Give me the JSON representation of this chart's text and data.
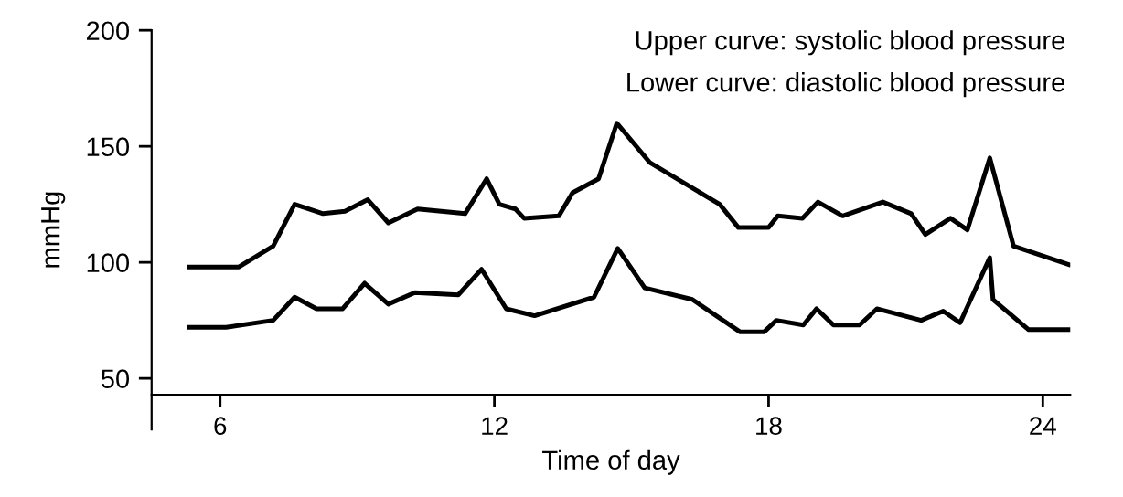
{
  "chart_data": {
    "type": "line",
    "xlabel": "Time of day",
    "ylabel": "mmHg",
    "annotations": [
      "Upper curve: systolic blood pressure",
      "Lower curve: diastolic blood pressure"
    ],
    "xlim": [
      4.5,
      24.6
    ],
    "xticks": [
      6,
      12,
      18,
      24
    ],
    "ylim": [
      28,
      200
    ],
    "yticks": [
      50,
      100,
      150,
      200
    ],
    "grid": false,
    "marker": "none",
    "line_style": "solid",
    "series": [
      {
        "color": "#000000",
        "x": [
          5.32,
          6.41,
          7.16,
          7.63,
          8.25,
          8.73,
          9.23,
          9.68,
          10.32,
          11.36,
          11.83,
          12.11,
          12.46,
          12.65,
          13.41,
          13.71,
          14.28,
          14.68,
          15.4,
          16.93,
          17.34,
          18.0,
          18.2,
          18.74,
          19.08,
          19.62,
          20.5,
          21.12,
          21.43,
          21.98,
          22.35,
          22.84,
          23.36,
          24.57
        ],
        "values": [
          98,
          98,
          107,
          125,
          121,
          122,
          127,
          117,
          123,
          121,
          136,
          125,
          123,
          119,
          120,
          130,
          136,
          160,
          143,
          125,
          115,
          115,
          120,
          119,
          126,
          120,
          126,
          121,
          112,
          119,
          114,
          145,
          107,
          99
        ]
      },
      {
        "color": "#000000",
        "x": [
          5.32,
          6.13,
          7.16,
          7.63,
          8.11,
          8.68,
          9.16,
          9.68,
          10.26,
          11.21,
          11.72,
          12.26,
          12.88,
          14.18,
          14.7,
          15.29,
          16.33,
          17.38,
          17.9,
          18.17,
          18.76,
          19.05,
          19.42,
          19.99,
          20.37,
          21.34,
          21.82,
          22.19,
          22.84,
          22.91,
          23.69,
          24.59
        ],
        "values": [
          72,
          72,
          75,
          85,
          80,
          80,
          91,
          82,
          87,
          86,
          97,
          80,
          77,
          85,
          106,
          89,
          84,
          70,
          70,
          75,
          73,
          80,
          73,
          73,
          80,
          75,
          79,
          74,
          102,
          84,
          71,
          71
        ]
      }
    ]
  }
}
